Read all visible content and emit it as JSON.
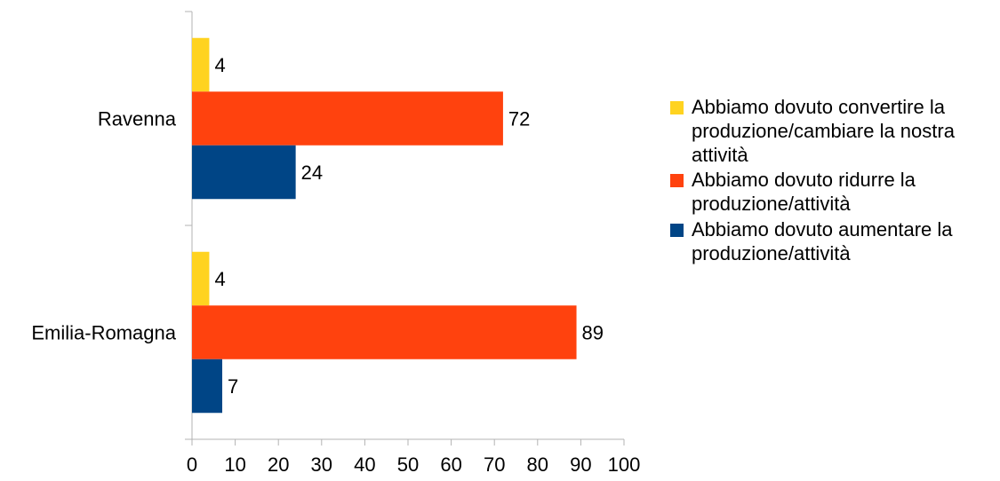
{
  "chart_data": {
    "type": "bar",
    "orientation": "horizontal",
    "categories": [
      "Ravenna",
      "Emilia-Romagna"
    ],
    "series": [
      {
        "name": "Abbiamo dovuto convertire la produzione/cambiare la nostra attività",
        "color": "#ffd320",
        "values": [
          4,
          4
        ]
      },
      {
        "name": "Abbiamo dovuto ridurre la produzione/attività",
        "color": "#ff420e",
        "values": [
          72,
          89
        ]
      },
      {
        "name": "Abbiamo dovuto aumentare la produzione/attività",
        "color": "#004586",
        "values": [
          24,
          7
        ]
      }
    ],
    "xlim": [
      0,
      100
    ],
    "xticks": [
      0,
      10,
      20,
      30,
      40,
      50,
      60,
      70,
      80,
      90,
      100
    ],
    "grid": false,
    "legend_position": "right",
    "data_labels": true
  }
}
